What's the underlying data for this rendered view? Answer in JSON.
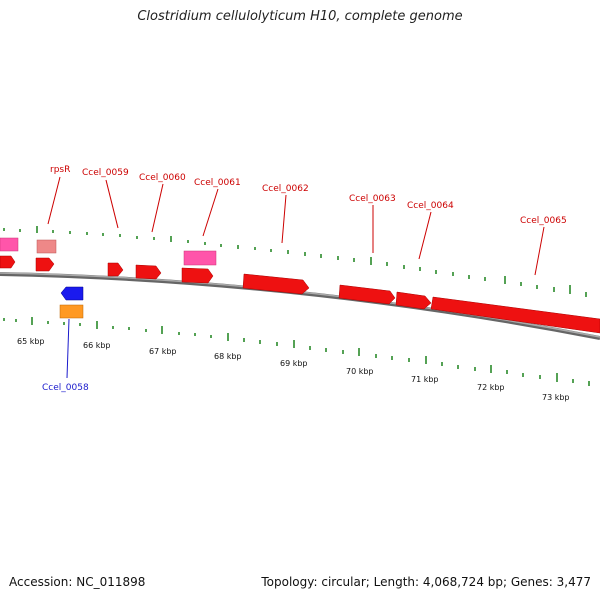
{
  "title": "Clostridium cellulolyticum H10, complete genome",
  "footer": {
    "accession": "Accession: NC_011898",
    "summary": "Topology: circular; Length: 4,068,724 bp; Genes: 3,477"
  },
  "colors": {
    "gene_forward": "#ee1111",
    "gene_reverse": "#1a1aee",
    "rna": "#ff55aa",
    "pseudo": "#ee8888",
    "orange": "#ff9922",
    "ticks": "#2a8a2a",
    "backbone": "#888888",
    "label_red": "#cc0000",
    "label_blue": "#1a1acc"
  },
  "kbp_labels": [
    "65 kbp",
    "66 kbp",
    "67 kbp",
    "68 kbp",
    "69 kbp",
    "70 kbp",
    "71 kbp",
    "72 kbp",
    "73 kbp"
  ],
  "gene_labels": [
    {
      "text": "rpsR",
      "color": "red"
    },
    {
      "text": "Ccel_0059",
      "color": "red"
    },
    {
      "text": "Ccel_0060",
      "color": "red"
    },
    {
      "text": "Ccel_0061",
      "color": "red"
    },
    {
      "text": "Ccel_0062",
      "color": "red"
    },
    {
      "text": "Ccel_0063",
      "color": "red"
    },
    {
      "text": "Ccel_0064",
      "color": "red"
    },
    {
      "text": "Ccel_0065",
      "color": "red"
    },
    {
      "text": "Ccel_0058",
      "color": "blue"
    }
  ]
}
